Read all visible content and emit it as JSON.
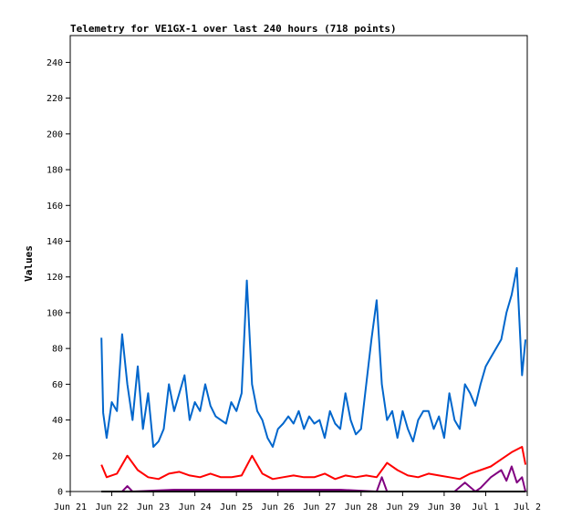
{
  "chart_data": {
    "type": "line",
    "title": "Telemetry for VE1GX-1 over last 240 hours (718 points)",
    "ylabel": "Values",
    "xlabel": "",
    "ylim": [
      0,
      255
    ],
    "y_ticks": [
      0,
      20,
      40,
      60,
      80,
      100,
      120,
      140,
      160,
      180,
      200,
      220,
      240
    ],
    "xlim": [
      "2023-06-21T00:00",
      "2023-07-02T00:00"
    ],
    "x_ticks": [
      {
        "label": "Jun 21",
        "t": "2023-06-21T00:00"
      },
      {
        "label": "Jun 22",
        "t": "2023-06-22T00:00"
      },
      {
        "label": "Jun 23",
        "t": "2023-06-23T00:00"
      },
      {
        "label": "Jun 24",
        "t": "2023-06-24T00:00"
      },
      {
        "label": "Jun 25",
        "t": "2023-06-25T00:00"
      },
      {
        "label": "Jun 26",
        "t": "2023-06-26T00:00"
      },
      {
        "label": "Jun 27",
        "t": "2023-06-27T00:00"
      },
      {
        "label": "Jun 28",
        "t": "2023-06-28T00:00"
      },
      {
        "label": "Jun 29",
        "t": "2023-06-29T00:00"
      },
      {
        "label": "Jun 30",
        "t": "2023-06-30T00:00"
      },
      {
        "label": "Jul 1",
        "t": "2023-07-01T00:00"
      },
      {
        "label": "Jul 2",
        "t": "2023-07-02T00:00"
      }
    ],
    "grid": false,
    "series": [
      {
        "color": "#0066cc",
        "x": [
          "2023-06-21T18:00",
          "2023-06-21T19:00",
          "2023-06-21T21:00",
          "2023-06-22T00:00",
          "2023-06-22T03:00",
          "2023-06-22T06:00",
          "2023-06-22T09:00",
          "2023-06-22T12:00",
          "2023-06-22T15:00",
          "2023-06-22T18:00",
          "2023-06-22T21:00",
          "2023-06-23T00:00",
          "2023-06-23T03:00",
          "2023-06-23T06:00",
          "2023-06-23T09:00",
          "2023-06-23T12:00",
          "2023-06-23T15:00",
          "2023-06-23T18:00",
          "2023-06-23T21:00",
          "2023-06-24T00:00",
          "2023-06-24T03:00",
          "2023-06-24T06:00",
          "2023-06-24T09:00",
          "2023-06-24T12:00",
          "2023-06-24T15:00",
          "2023-06-24T18:00",
          "2023-06-24T21:00",
          "2023-06-25T00:00",
          "2023-06-25T03:00",
          "2023-06-25T06:00",
          "2023-06-25T09:00",
          "2023-06-25T12:00",
          "2023-06-25T15:00",
          "2023-06-25T18:00",
          "2023-06-25T21:00",
          "2023-06-26T00:00",
          "2023-06-26T03:00",
          "2023-06-26T06:00",
          "2023-06-26T09:00",
          "2023-06-26T12:00",
          "2023-06-26T15:00",
          "2023-06-26T18:00",
          "2023-06-26T21:00",
          "2023-06-27T00:00",
          "2023-06-27T03:00",
          "2023-06-27T06:00",
          "2023-06-27T09:00",
          "2023-06-27T12:00",
          "2023-06-27T15:00",
          "2023-06-27T18:00",
          "2023-06-27T21:00",
          "2023-06-28T00:00",
          "2023-06-28T03:00",
          "2023-06-28T06:00",
          "2023-06-28T09:00",
          "2023-06-28T12:00",
          "2023-06-28T15:00",
          "2023-06-28T18:00",
          "2023-06-28T21:00",
          "2023-06-29T00:00",
          "2023-06-29T03:00",
          "2023-06-29T06:00",
          "2023-06-29T09:00",
          "2023-06-29T12:00",
          "2023-06-29T15:00",
          "2023-06-29T18:00",
          "2023-06-29T21:00",
          "2023-06-30T00:00",
          "2023-06-30T03:00",
          "2023-06-30T06:00",
          "2023-06-30T09:00",
          "2023-06-30T12:00",
          "2023-06-30T15:00",
          "2023-06-30T18:00",
          "2023-06-30T21:00",
          "2023-07-01T00:00",
          "2023-07-01T03:00",
          "2023-07-01T06:00",
          "2023-07-01T09:00",
          "2023-07-01T12:00",
          "2023-07-01T15:00",
          "2023-07-01T18:00",
          "2023-07-01T21:00",
          "2023-07-01T23:00"
        ],
        "y": [
          86,
          44,
          30,
          50,
          45,
          88,
          60,
          40,
          70,
          35,
          55,
          25,
          28,
          35,
          60,
          45,
          55,
          65,
          40,
          50,
          45,
          60,
          48,
          42,
          40,
          38,
          50,
          45,
          55,
          118,
          60,
          45,
          40,
          30,
          25,
          35,
          38,
          42,
          38,
          45,
          35,
          42,
          38,
          40,
          30,
          45,
          38,
          35,
          55,
          40,
          32,
          35,
          60,
          85,
          107,
          60,
          40,
          45,
          30,
          45,
          35,
          28,
          40,
          45,
          45,
          35,
          42,
          30,
          55,
          40,
          35,
          60,
          55,
          48,
          60,
          70,
          75,
          80,
          85,
          100,
          110,
          125,
          65,
          85
        ]
      },
      {
        "color": "#ff0000",
        "x": [
          "2023-06-21T18:00",
          "2023-06-21T21:00",
          "2023-06-22T03:00",
          "2023-06-22T09:00",
          "2023-06-22T15:00",
          "2023-06-22T21:00",
          "2023-06-23T03:00",
          "2023-06-23T09:00",
          "2023-06-23T15:00",
          "2023-06-23T21:00",
          "2023-06-24T03:00",
          "2023-06-24T09:00",
          "2023-06-24T15:00",
          "2023-06-24T21:00",
          "2023-06-25T03:00",
          "2023-06-25T09:00",
          "2023-06-25T15:00",
          "2023-06-25T21:00",
          "2023-06-26T03:00",
          "2023-06-26T09:00",
          "2023-06-26T15:00",
          "2023-06-26T21:00",
          "2023-06-27T03:00",
          "2023-06-27T09:00",
          "2023-06-27T15:00",
          "2023-06-27T21:00",
          "2023-06-28T03:00",
          "2023-06-28T09:00",
          "2023-06-28T15:00",
          "2023-06-28T21:00",
          "2023-06-29T03:00",
          "2023-06-29T09:00",
          "2023-06-29T15:00",
          "2023-06-29T21:00",
          "2023-06-30T03:00",
          "2023-06-30T09:00",
          "2023-06-30T15:00",
          "2023-06-30T21:00",
          "2023-07-01T03:00",
          "2023-07-01T09:00",
          "2023-07-01T15:00",
          "2023-07-01T21:00",
          "2023-07-01T23:00"
        ],
        "y": [
          15,
          8,
          10,
          20,
          12,
          8,
          7,
          10,
          11,
          9,
          8,
          10,
          8,
          8,
          9,
          20,
          10,
          7,
          8,
          9,
          8,
          8,
          10,
          7,
          9,
          8,
          9,
          8,
          16,
          12,
          9,
          8,
          10,
          9,
          8,
          7,
          10,
          12,
          14,
          18,
          22,
          25,
          15
        ]
      },
      {
        "color": "#800080",
        "x": [
          "2023-06-21T18:00",
          "2023-06-22T06:00",
          "2023-06-22T09:00",
          "2023-06-22T12:00",
          "2023-06-23T12:00",
          "2023-06-24T12:00",
          "2023-06-25T12:00",
          "2023-06-26T12:00",
          "2023-06-27T12:00",
          "2023-06-28T09:00",
          "2023-06-28T12:00",
          "2023-06-28T15:00",
          "2023-06-29T12:00",
          "2023-06-30T06:00",
          "2023-06-30T12:00",
          "2023-06-30T18:00",
          "2023-06-30T21:00",
          "2023-07-01T03:00",
          "2023-07-01T09:00",
          "2023-07-01T12:00",
          "2023-07-01T15:00",
          "2023-07-01T18:00",
          "2023-07-01T21:00",
          "2023-07-01T23:00"
        ],
        "y": [
          0,
          0,
          3,
          0,
          1,
          1,
          1,
          1,
          1,
          0,
          8,
          0,
          0,
          0,
          5,
          0,
          2,
          8,
          12,
          6,
          14,
          5,
          8,
          0
        ]
      },
      {
        "color": "#006400",
        "x": [
          "2023-06-21T18:00",
          "2023-07-01T23:00"
        ],
        "y": [
          0,
          0
        ]
      },
      {
        "color": "#000000",
        "x": [
          "2023-06-21T18:00",
          "2023-07-01T23:00"
        ],
        "y": [
          0,
          0
        ]
      }
    ]
  }
}
